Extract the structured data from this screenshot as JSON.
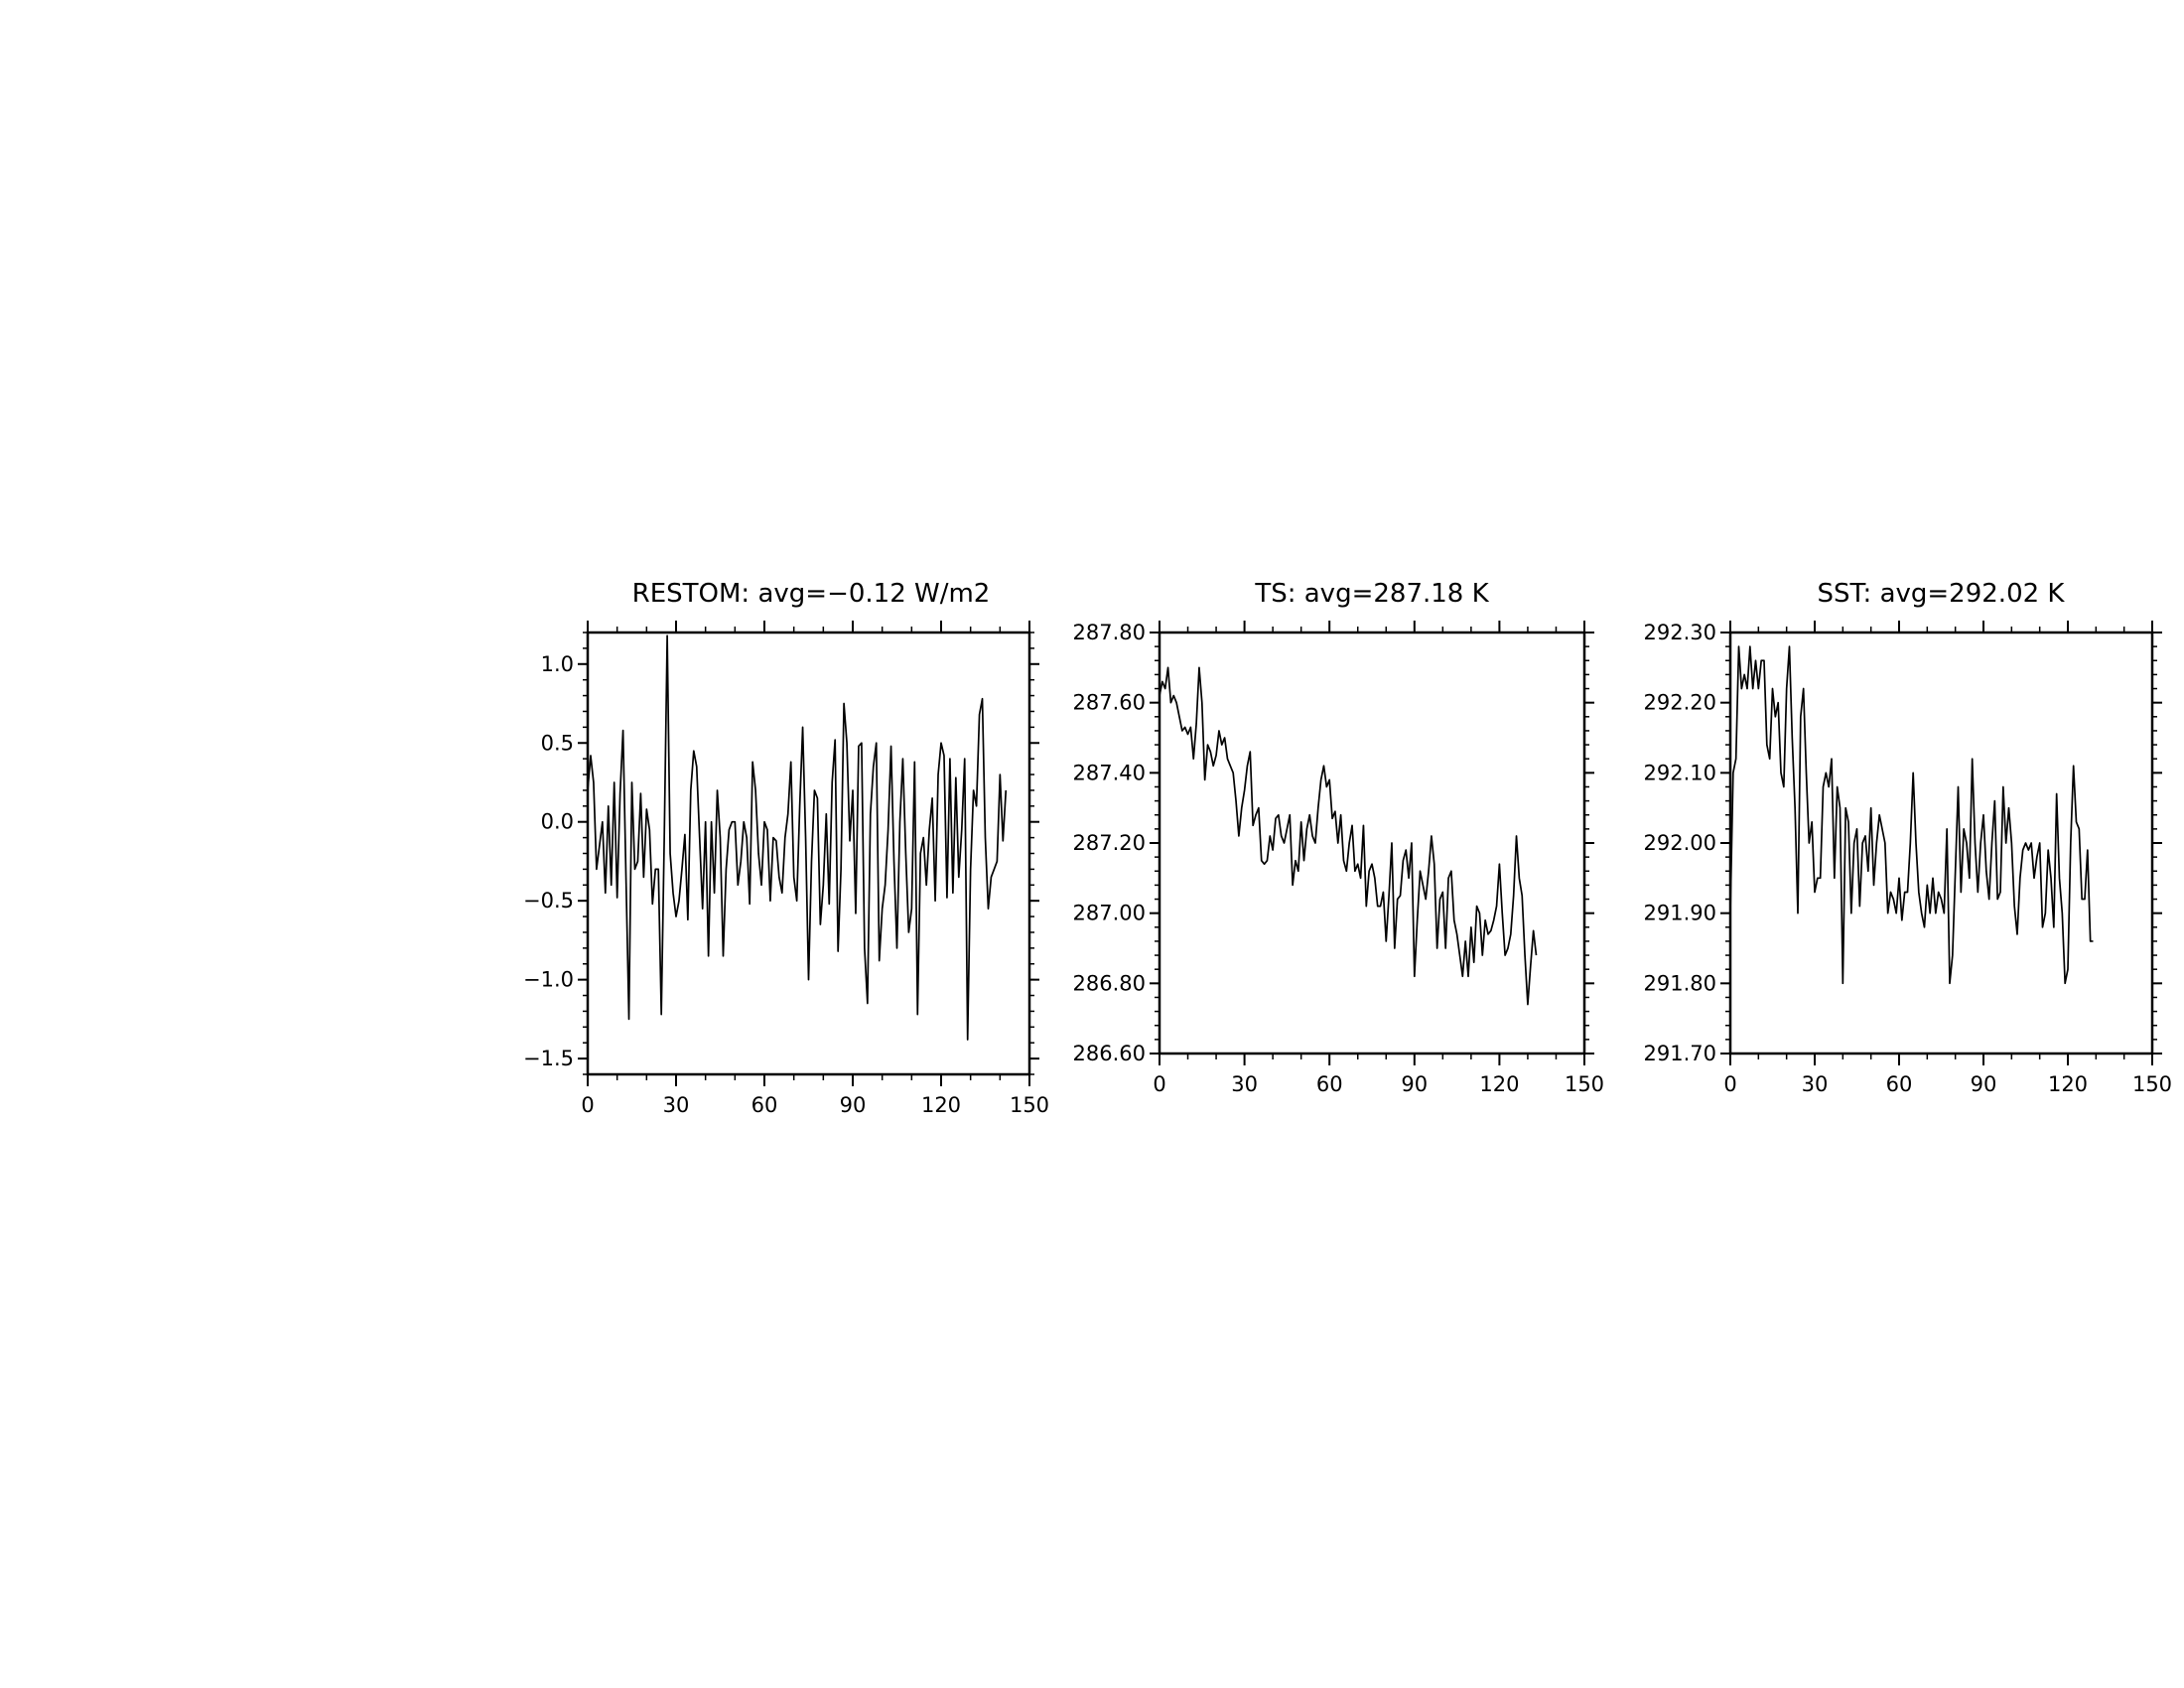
{
  "chart_data": [
    {
      "type": "line",
      "title": "RESTOM: avg=−0.12 W/m2",
      "xlabel": "",
      "ylabel": "",
      "xlim": [
        0,
        150
      ],
      "ylim": [
        -1.6,
        1.2
      ],
      "x_ticks": [
        0,
        30,
        60,
        90,
        120,
        150
      ],
      "x_tick_labels": [
        "0",
        "30",
        "60",
        "90",
        "120",
        "150"
      ],
      "y_ticks": [
        -1.5,
        -1.0,
        -0.5,
        0.0,
        0.5,
        1.0
      ],
      "y_tick_labels": [
        "−1.5",
        "−1.0",
        "−0.5",
        "0.0",
        "0.5",
        "1.0"
      ],
      "grid": false,
      "series": [
        {
          "x_start": 0,
          "x_step": 1,
          "values": [
            0.2,
            0.42,
            0.25,
            -0.3,
            -0.15,
            0.0,
            -0.45,
            0.1,
            -0.4,
            0.25,
            -0.48,
            0.18,
            0.58,
            -0.35,
            -1.25,
            0.25,
            -0.3,
            -0.25,
            0.18,
            -0.35,
            0.08,
            -0.05,
            -0.52,
            -0.3,
            -0.3,
            -1.22,
            -0.1,
            1.18,
            -0.2,
            -0.45,
            -0.6,
            -0.5,
            -0.3,
            -0.08,
            -0.62,
            0.2,
            0.45,
            0.35,
            -0.1,
            -0.55,
            0.0,
            -0.85,
            0.0,
            -0.45,
            0.2,
            -0.1,
            -0.85,
            -0.3,
            -0.05,
            0.0,
            0.0,
            -0.4,
            -0.25,
            0.0,
            -0.1,
            -0.52,
            0.38,
            0.2,
            -0.2,
            -0.4,
            0.0,
            -0.05,
            -0.5,
            -0.1,
            -0.12,
            -0.35,
            -0.45,
            -0.1,
            0.05,
            0.38,
            -0.35,
            -0.5,
            0.1,
            0.6,
            -0.1,
            -1.0,
            -0.25,
            0.2,
            0.15,
            -0.65,
            -0.4,
            0.05,
            -0.52,
            0.25,
            0.52,
            -0.82,
            -0.3,
            0.75,
            0.5,
            -0.12,
            0.2,
            -0.58,
            0.48,
            0.5,
            -0.8,
            -1.15,
            0.05,
            0.35,
            0.5,
            -0.88,
            -0.55,
            -0.4,
            -0.05,
            0.48,
            -0.25,
            -0.8,
            0.0,
            0.4,
            -0.2,
            -0.7,
            -0.55,
            0.38,
            -1.22,
            -0.2,
            -0.1,
            -0.4,
            -0.05,
            0.15,
            -0.5,
            0.3,
            0.5,
            0.42,
            -0.48,
            0.4,
            -0.45,
            0.28,
            -0.35,
            -0.05,
            0.4,
            -1.38,
            -0.3,
            0.2,
            0.1,
            0.68,
            0.78,
            -0.1,
            -0.55,
            -0.35,
            -0.3,
            -0.25,
            0.3,
            -0.12,
            0.2
          ]
        }
      ]
    },
    {
      "type": "line",
      "title": "TS: avg=287.18 K",
      "xlabel": "",
      "ylabel": "",
      "xlim": [
        0,
        150
      ],
      "ylim": [
        286.6,
        287.8
      ],
      "x_ticks": [
        0,
        30,
        60,
        90,
        120,
        150
      ],
      "x_tick_labels": [
        "0",
        "30",
        "60",
        "90",
        "120",
        "150"
      ],
      "y_ticks": [
        286.6,
        286.8,
        287.0,
        287.2,
        287.4,
        287.6,
        287.8
      ],
      "y_tick_labels": [
        "286.60",
        "286.80",
        "287.00",
        "287.20",
        "287.40",
        "287.60",
        "287.80"
      ],
      "grid": false,
      "series": [
        {
          "x_start": 0,
          "x_step": 1,
          "values": [
            287.62,
            287.66,
            287.64,
            287.7,
            287.6,
            287.62,
            287.6,
            287.56,
            287.52,
            287.53,
            287.51,
            287.53,
            287.44,
            287.54,
            287.7,
            287.6,
            287.38,
            287.48,
            287.46,
            287.42,
            287.45,
            287.52,
            287.48,
            287.5,
            287.44,
            287.42,
            287.4,
            287.32,
            287.22,
            287.3,
            287.35,
            287.42,
            287.46,
            287.25,
            287.28,
            287.3,
            287.15,
            287.14,
            287.15,
            287.22,
            287.18,
            287.27,
            287.28,
            287.22,
            287.2,
            287.24,
            287.28,
            287.08,
            287.15,
            287.12,
            287.26,
            287.15,
            287.24,
            287.28,
            287.22,
            287.2,
            287.3,
            287.38,
            287.42,
            287.36,
            287.38,
            287.27,
            287.29,
            287.2,
            287.28,
            287.15,
            287.12,
            287.2,
            287.25,
            287.12,
            287.14,
            287.1,
            287.25,
            287.02,
            287.12,
            287.14,
            287.1,
            287.02,
            287.02,
            287.06,
            286.92,
            287.05,
            287.2,
            286.9,
            287.04,
            287.05,
            287.15,
            287.18,
            287.1,
            287.2,
            286.82,
            286.98,
            287.12,
            287.08,
            287.04,
            287.12,
            287.22,
            287.14,
            286.9,
            287.04,
            287.06,
            286.9,
            287.1,
            287.12,
            286.98,
            286.94,
            286.88,
            286.82,
            286.92,
            286.82,
            286.96,
            286.86,
            287.02,
            287.0,
            286.88,
            286.98,
            286.94,
            286.95,
            286.98,
            287.02,
            287.14,
            287.0,
            286.88,
            286.9,
            286.94,
            287.05,
            287.22,
            287.1,
            287.05,
            286.88,
            286.74,
            286.85,
            286.95,
            286.88
          ]
        }
      ]
    },
    {
      "type": "line",
      "title": "SST: avg=292.02 K",
      "xlabel": "",
      "ylabel": "",
      "xlim": [
        0,
        150
      ],
      "ylim": [
        291.7,
        292.3
      ],
      "x_ticks": [
        0,
        30,
        60,
        90,
        120,
        150
      ],
      "x_tick_labels": [
        "0",
        "30",
        "60",
        "90",
        "120",
        "150"
      ],
      "y_ticks": [
        291.7,
        291.8,
        291.9,
        292.0,
        292.1,
        292.2,
        292.3
      ],
      "y_tick_labels": [
        "291.70",
        "291.80",
        "291.90",
        "292.00",
        "292.10",
        "292.20",
        "292.30"
      ],
      "grid": false,
      "series": [
        {
          "x_start": 0,
          "x_step": 1,
          "values": [
            291.9,
            292.1,
            292.12,
            292.28,
            292.22,
            292.24,
            292.22,
            292.28,
            292.22,
            292.26,
            292.22,
            292.26,
            292.26,
            292.14,
            292.12,
            292.22,
            292.18,
            292.2,
            292.1,
            292.08,
            292.22,
            292.28,
            292.15,
            292.05,
            291.9,
            292.18,
            292.22,
            292.1,
            292.0,
            292.03,
            291.93,
            291.95,
            291.95,
            292.08,
            292.1,
            292.08,
            292.12,
            291.95,
            292.08,
            292.05,
            291.8,
            292.05,
            292.03,
            291.9,
            292.0,
            292.02,
            291.91,
            292.0,
            292.01,
            291.96,
            292.05,
            291.94,
            292.0,
            292.04,
            292.02,
            292.0,
            291.9,
            291.93,
            291.92,
            291.9,
            291.95,
            291.89,
            291.93,
            291.93,
            292.0,
            292.1,
            292.0,
            291.93,
            291.9,
            291.88,
            291.94,
            291.9,
            291.95,
            291.9,
            291.93,
            291.92,
            291.9,
            292.02,
            291.8,
            291.84,
            291.96,
            292.08,
            291.93,
            292.02,
            292.0,
            291.95,
            292.12,
            292.0,
            291.93,
            292.0,
            292.04,
            291.96,
            291.92,
            292.0,
            292.06,
            291.92,
            291.93,
            292.08,
            292.0,
            292.05,
            292.0,
            291.91,
            291.87,
            291.95,
            291.99,
            292.0,
            291.99,
            292.0,
            291.95,
            291.98,
            292.0,
            291.88,
            291.9,
            291.99,
            291.95,
            291.88,
            292.07,
            291.95,
            291.9,
            291.8,
            291.82,
            292.0,
            292.11,
            292.03,
            292.02,
            291.92,
            291.92,
            291.99,
            291.86,
            291.86
          ]
        }
      ]
    }
  ]
}
